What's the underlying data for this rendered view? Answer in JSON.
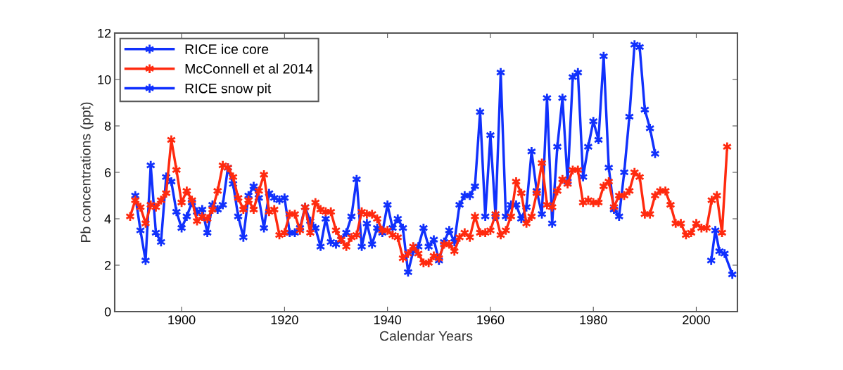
{
  "chart_data": {
    "type": "line",
    "xlabel": "Calendar Years",
    "ylabel": "Pb concentrations (ppt)",
    "xlim": [
      1887,
      2008
    ],
    "xticks": [
      1900,
      1920,
      1940,
      1960,
      1980,
      2000
    ],
    "ylim": [
      0,
      12
    ],
    "yticks": [
      0,
      2,
      4,
      6,
      8,
      10,
      12
    ],
    "grid": false,
    "legend": "top left",
    "marker": "cross",
    "line_style": "solid",
    "series": [
      {
        "name": "RICE ice core",
        "color": "#1131fc",
        "x": [
          1891,
          1892,
          1893,
          1894,
          1895,
          1896,
          1897,
          1898,
          1899,
          1900,
          1901,
          1902,
          1903,
          1904,
          1905,
          1906,
          1907,
          1908,
          1909,
          1910,
          1911,
          1912,
          1913,
          1914,
          1915,
          1916,
          1917,
          1918,
          1919,
          1920,
          1921,
          1922,
          1923,
          1924,
          1925,
          1926,
          1927,
          1928,
          1929,
          1930,
          1931,
          1932,
          1933,
          1934,
          1935,
          1936,
          1937,
          1938,
          1939,
          1940,
          1941,
          1942,
          1943,
          1944,
          1945,
          1946,
          1947,
          1948,
          1949,
          1950,
          1951,
          1952,
          1953,
          1954,
          1955,
          1956,
          1957,
          1958,
          1959,
          1960,
          1961,
          1962,
          1963,
          1964,
          1965,
          1966,
          1967,
          1968,
          1969,
          1970,
          1971,
          1972,
          1973,
          1974,
          1975,
          1976,
          1977,
          1978,
          1979,
          1980,
          1981,
          1982,
          1983,
          1984,
          1985,
          1986,
          1987,
          1988,
          1989,
          1990,
          1991,
          1992
        ],
        "values": [
          5.0,
          3.5,
          2.2,
          6.3,
          3.4,
          3.0,
          5.8,
          5.6,
          4.3,
          3.6,
          4.1,
          4.7,
          4.3,
          4.4,
          3.4,
          4.6,
          4.4,
          4.6,
          6.2,
          5.5,
          4.1,
          3.2,
          5.0,
          5.4,
          4.9,
          3.6,
          5.1,
          4.9,
          4.8,
          4.9,
          3.4,
          3.4,
          3.6,
          4.5,
          3.9,
          3.6,
          2.8,
          4.0,
          3.0,
          2.9,
          3.1,
          3.4,
          4.1,
          5.7,
          2.8,
          3.8,
          2.9,
          3.6,
          3.4,
          4.6,
          3.6,
          4.0,
          3.6,
          1.7,
          2.6,
          2.8,
          3.6,
          2.8,
          3.1,
          2.2,
          3.0,
          3.5,
          3.0,
          4.6,
          5.0,
          5.0,
          5.4,
          8.6,
          4.1,
          7.6,
          4.1,
          10.3,
          4.1,
          4.6,
          4.6,
          4.0,
          4.5,
          6.9,
          5.2,
          4.2,
          9.2,
          3.8,
          7.1,
          9.2,
          5.6,
          10.1,
          10.3,
          5.8,
          7.1,
          8.2,
          7.4,
          11.0,
          6.2,
          4.4,
          4.1,
          6.0,
          8.4,
          11.5,
          11.4,
          8.7,
          7.9,
          6.8
        ]
      },
      {
        "name": "McConnell et al 2014",
        "color": "#ff2a0f",
        "x": [
          1890,
          1891,
          1892,
          1893,
          1894,
          1895,
          1896,
          1897,
          1898,
          1899,
          1900,
          1901,
          1902,
          1903,
          1904,
          1905,
          1906,
          1907,
          1908,
          1909,
          1910,
          1911,
          1912,
          1913,
          1914,
          1915,
          1916,
          1917,
          1918,
          1919,
          1920,
          1921,
          1922,
          1923,
          1924,
          1925,
          1926,
          1927,
          1928,
          1929,
          1930,
          1931,
          1932,
          1933,
          1934,
          1935,
          1936,
          1937,
          1938,
          1939,
          1940,
          1941,
          1942,
          1943,
          1944,
          1945,
          1946,
          1947,
          1948,
          1949,
          1950,
          1951,
          1952,
          1953,
          1954,
          1955,
          1956,
          1957,
          1958,
          1959,
          1960,
          1961,
          1962,
          1963,
          1964,
          1965,
          1966,
          1967,
          1968,
          1969,
          1970,
          1971,
          1972,
          1973,
          1974,
          1975,
          1976,
          1977,
          1978,
          1979,
          1980,
          1981,
          1982,
          1983,
          1984,
          1985,
          1986,
          1987,
          1988,
          1989,
          1990,
          1991,
          1992,
          1993,
          1994,
          1995,
          1996,
          1997,
          1998,
          1999,
          2000,
          2001,
          2002,
          2003,
          2004,
          2005,
          2006
        ],
        "values": [
          4.1,
          4.8,
          4.5,
          3.8,
          4.6,
          4.5,
          4.8,
          5.1,
          7.4,
          6.1,
          4.7,
          5.2,
          4.8,
          3.9,
          4.1,
          4.0,
          4.4,
          5.2,
          6.3,
          6.2,
          5.8,
          4.9,
          4.4,
          4.8,
          4.4,
          5.2,
          5.9,
          4.3,
          4.4,
          3.3,
          3.4,
          4.2,
          4.2,
          3.5,
          4.5,
          3.4,
          4.7,
          4.4,
          4.3,
          4.3,
          3.5,
          3.1,
          2.8,
          3.2,
          3.3,
          4.3,
          4.2,
          4.2,
          4.0,
          3.5,
          3.5,
          3.3,
          3.2,
          2.3,
          2.5,
          2.8,
          2.5,
          2.1,
          2.1,
          2.4,
          2.3,
          2.9,
          2.9,
          2.6,
          3.2,
          3.4,
          3.2,
          4.1,
          3.4,
          3.4,
          3.5,
          4.2,
          3.3,
          3.5,
          4.1,
          5.6,
          5.1,
          3.8,
          4.1,
          5.1,
          6.4,
          4.6,
          4.5,
          5.2,
          5.7,
          5.5,
          6.1,
          6.1,
          4.7,
          4.8,
          4.7,
          4.7,
          5.4,
          5.6,
          4.5,
          5.0,
          5.0,
          5.2,
          6.0,
          5.8,
          4.2,
          4.2,
          5.0,
          5.2,
          5.2,
          4.6,
          3.8,
          3.8,
          3.3,
          3.4,
          3.8,
          3.6,
          3.6,
          4.8,
          5.0,
          3.4,
          7.1
        ]
      },
      {
        "name": "RICE snow pit",
        "color": "#0f2fff",
        "x": [
          2002.9,
          2003.7,
          2004.5,
          2005.5,
          2007.0
        ],
        "values": [
          2.2,
          3.5,
          2.6,
          2.5,
          1.6
        ]
      }
    ]
  }
}
